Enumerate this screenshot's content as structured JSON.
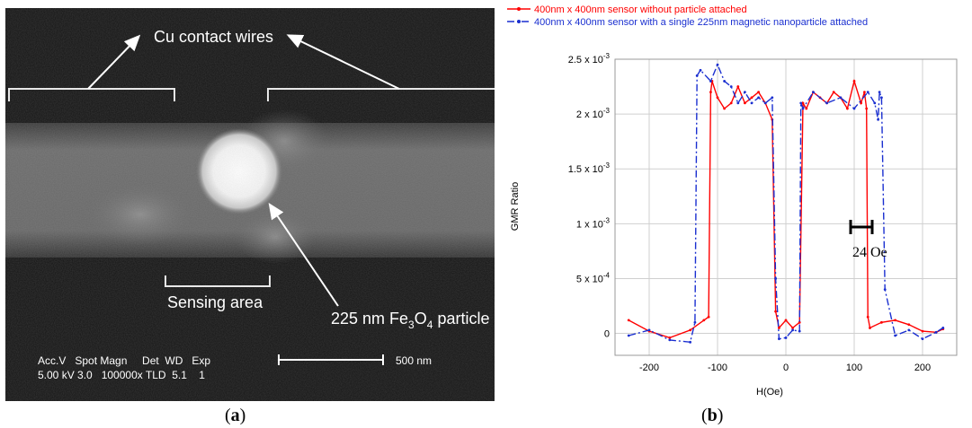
{
  "figure": {
    "panel_a": {
      "caption_open": "(",
      "caption_letter": "a",
      "caption_close": ")",
      "labels": {
        "contact_wires": "Cu contact wires",
        "sensing_area": "Sensing area",
        "particle_prefix": "225 nm Fe",
        "particle_sub1": "3",
        "particle_mid": "O",
        "particle_sub2": "4",
        "particle_suffix": " particle"
      },
      "sem_info": {
        "header": "Acc.V   Spot Magn     Det  WD   Exp",
        "values": "5.00 kV 3.0   100000x TLD  5.1    1",
        "scale_bar": "500 nm"
      }
    },
    "panel_b": {
      "caption_open": "(",
      "caption_letter": "b",
      "caption_close": ")",
      "annotation": "24 Oe"
    }
  },
  "chart_data": {
    "type": "line",
    "xlabel": "H(Oe)",
    "ylabel": "GMR Ratio",
    "xlim": [
      -250,
      250
    ],
    "ylim": [
      -0.0002,
      0.0025
    ],
    "grid": true,
    "legend_position": "top",
    "x_ticks": [
      {
        "value": -200,
        "label": "-200"
      },
      {
        "value": -100,
        "label": "-100"
      },
      {
        "value": 0,
        "label": "0"
      },
      {
        "value": 100,
        "label": "100"
      },
      {
        "value": 200,
        "label": "200"
      }
    ],
    "y_ticks": [
      {
        "value": 0,
        "mant": "0",
        "exp": ""
      },
      {
        "value": 0.0005,
        "mant": "5 x 10",
        "exp": "-4"
      },
      {
        "value": 0.001,
        "mant": "1 x 10",
        "exp": "-3"
      },
      {
        "value": 0.0015,
        "mant": "1.5 x 10",
        "exp": "-3"
      },
      {
        "value": 0.002,
        "mant": "2 x 10",
        "exp": "-3"
      },
      {
        "value": 0.0025,
        "mant": "2.5 x 10",
        "exp": "-3"
      }
    ],
    "series": [
      {
        "name": "400nm x 400nm sensor without particle attached",
        "color": "#ff0000",
        "dash": "solid",
        "x": [
          -230,
          -200,
          -170,
          -140,
          -120,
          -113,
          -110,
          -108,
          -100,
          -90,
          -80,
          -70,
          -60,
          -50,
          -40,
          -30,
          -20,
          -15,
          -10,
          0,
          10,
          20,
          25,
          30,
          40,
          50,
          60,
          70,
          80,
          90,
          100,
          110,
          115,
          118,
          120,
          123,
          140,
          160,
          180,
          200,
          220,
          230
        ],
        "y": [
          0.00012,
          2e-05,
          -4e-05,
          3e-05,
          0.00012,
          0.00015,
          0.0022,
          0.0023,
          0.00215,
          0.00205,
          0.0021,
          0.00225,
          0.0021,
          0.00215,
          0.0022,
          0.0021,
          0.00195,
          0.0002,
          5e-05,
          0.00012,
          5e-05,
          0.0001,
          0.0021,
          0.00205,
          0.0022,
          0.00215,
          0.0021,
          0.0022,
          0.00215,
          0.00205,
          0.0023,
          0.0021,
          0.0022,
          0.00205,
          0.00015,
          5e-05,
          0.0001,
          0.00012,
          8e-05,
          2e-05,
          1e-05,
          4e-05
        ]
      },
      {
        "name": "400nm x 400nm sensor with a single 225nm magnetic nanoparticle attached",
        "color": "#1a2fd0",
        "dash": "dashdot",
        "x": [
          -230,
          -200,
          -170,
          -140,
          -133,
          -130,
          -125,
          -110,
          -100,
          -90,
          -80,
          -70,
          -60,
          -50,
          -40,
          -30,
          -20,
          -15,
          -10,
          0,
          10,
          20,
          22,
          25,
          40,
          60,
          80,
          100,
          120,
          130,
          135,
          137,
          140,
          145,
          160,
          180,
          200,
          220,
          230
        ],
        "y": [
          -2e-05,
          3e-05,
          -6e-05,
          -8e-05,
          0.0001,
          0.00235,
          0.0024,
          0.0023,
          0.00245,
          0.0023,
          0.00225,
          0.0021,
          0.0022,
          0.0021,
          0.00215,
          0.0021,
          0.00215,
          0.0005,
          -5e-05,
          -4e-05,
          3e-05,
          2e-05,
          0.0021,
          0.00205,
          0.0022,
          0.0021,
          0.00215,
          0.00205,
          0.0022,
          0.0021,
          0.00195,
          0.0022,
          0.00215,
          0.0004,
          -2e-05,
          3e-05,
          -5e-05,
          1e-05,
          5e-05
        ]
      }
    ]
  }
}
